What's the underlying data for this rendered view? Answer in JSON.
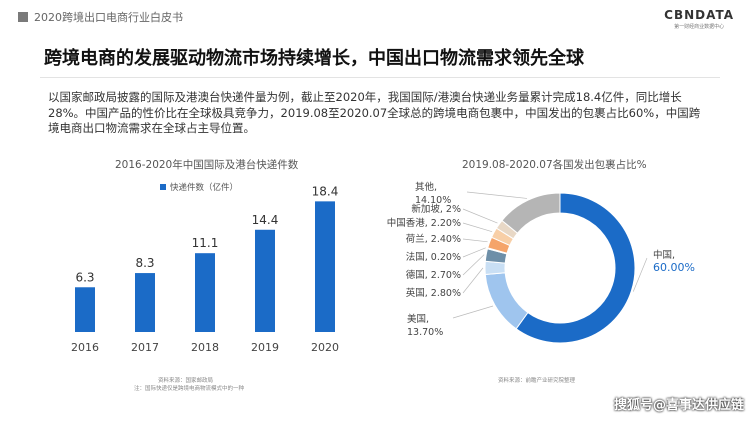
{
  "header": {
    "doc_title": "2020跨境出口电商行业白皮书",
    "logo": "CBNDATA",
    "logo_sub": "第一财经商业数据中心"
  },
  "slide": {
    "title": "跨境电商的发展驱动物流市场持续增长，中国出口物流需求领先全球",
    "paragraph": "以国家邮政局披露的国际及港澳台快递件量为例，截止至2020年，我国国际/港澳台快递业务量累计完成18.4亿件，同比增长28%。中国产品的性价比在全球极具竞争力，2019.08至2020.07全球总的跨境电商包裹中，中国发出的包裹占比60%，中国跨境电商出口物流需求在全球占主导位置。"
  },
  "bar_source": "资料来源：国家邮政局",
  "bar_note": "注：国际快递仅是跨境电商物流模式中的一种",
  "pie_source": "资料来源：前瞻产业研究院整理",
  "watermark": "搜狐号@喜事达供应链",
  "colors": {
    "bar": "#1b6bc7",
    "china": "#1b6bc7",
    "usa": "#9fc5ee",
    "uk": "#c9dff4",
    "germany": "#6e8fa8",
    "france": "#dbe6f0",
    "netherlands": "#f5a46a",
    "hongkong": "#f8cfa7",
    "singapore": "#e8d8c6",
    "others": "#b5b5b5"
  },
  "chart_data": [
    {
      "type": "bar",
      "title": "2016-2020年中国国际及港台快递件数",
      "legend": "快递件数（亿件）",
      "categories": [
        "2016",
        "2017",
        "2018",
        "2019",
        "2020"
      ],
      "values": [
        6.3,
        8.3,
        11.1,
        14.4,
        18.4
      ],
      "labels": [
        "6.3",
        "8.3",
        "11.1",
        "14.4",
        "18.4"
      ],
      "ylim": [
        0,
        20
      ]
    },
    {
      "type": "pie",
      "title": "2019.08-2020.07各国发出包裹占比%",
      "slices": [
        {
          "name": "中国",
          "value": 60.0,
          "label": "中国,",
          "pct": "60.00%",
          "color": "#1b6bc7"
        },
        {
          "name": "美国",
          "value": 13.7,
          "label": "美国,",
          "pct": "13.70%",
          "color": "#9fc5ee"
        },
        {
          "name": "英国",
          "value": 2.8,
          "label": "英国, 2.80%",
          "color": "#c9dff4"
        },
        {
          "name": "德国",
          "value": 2.7,
          "label": "德国, 2.70%",
          "color": "#6e8fa8"
        },
        {
          "name": "法国",
          "value": 0.2,
          "label": "法国, 0.20%",
          "color": "#dbe6f0"
        },
        {
          "name": "荷兰",
          "value": 2.4,
          "label": "荷兰, 2.40%",
          "color": "#f5a46a"
        },
        {
          "name": "中国香港",
          "value": 2.2,
          "label": "中国香港, 2.20%",
          "color": "#f8cfa7"
        },
        {
          "name": "新加坡",
          "value": 2.0,
          "label": "新加坡, 2%",
          "color": "#e8d8c6"
        },
        {
          "name": "其他",
          "value": 14.1,
          "label": "其他,",
          "pct": "14.10%",
          "color": "#b5b5b5"
        }
      ]
    }
  ]
}
